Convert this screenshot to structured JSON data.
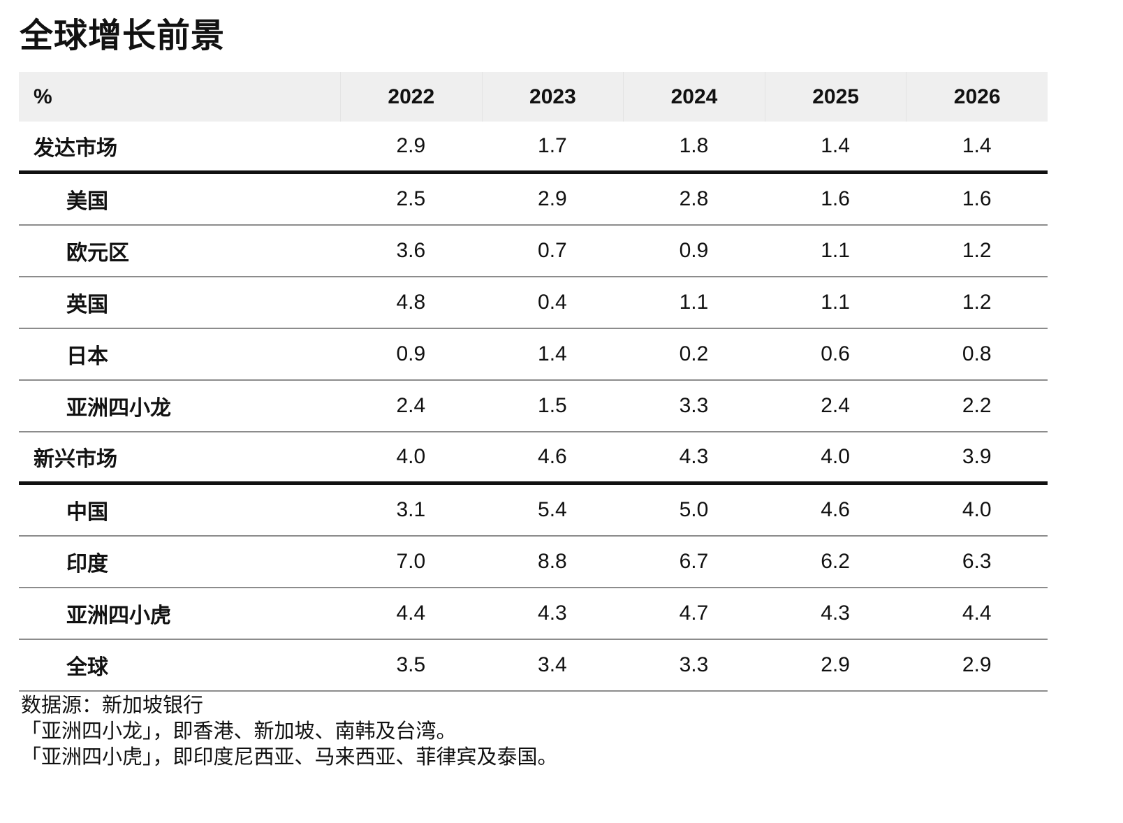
{
  "title": "全球增长前景",
  "chart_data": {
    "type": "table",
    "title": "全球增长前景",
    "unit_label": "%",
    "columns": [
      "2022",
      "2023",
      "2024",
      "2025",
      "2026"
    ],
    "rows": [
      {
        "label": "发达市场",
        "group": true,
        "values": [
          "2.9",
          "1.7",
          "1.8",
          "1.4",
          "1.4"
        ]
      },
      {
        "label": "美国",
        "group": false,
        "values": [
          "2.5",
          "2.9",
          "2.8",
          "1.6",
          "1.6"
        ]
      },
      {
        "label": "欧元区",
        "group": false,
        "values": [
          "3.6",
          "0.7",
          "0.9",
          "1.1",
          "1.2"
        ]
      },
      {
        "label": "英国",
        "group": false,
        "values": [
          "4.8",
          "0.4",
          "1.1",
          "1.1",
          "1.2"
        ]
      },
      {
        "label": "日本",
        "group": false,
        "values": [
          "0.9",
          "1.4",
          "0.2",
          "0.6",
          "0.8"
        ]
      },
      {
        "label": "亚洲四小龙",
        "group": false,
        "values": [
          "2.4",
          "1.5",
          "3.3",
          "2.4",
          "2.2"
        ]
      },
      {
        "label": "新兴市场",
        "group": true,
        "values": [
          "4.0",
          "4.6",
          "4.3",
          "4.0",
          "3.9"
        ]
      },
      {
        "label": "中国",
        "group": false,
        "values": [
          "3.1",
          "5.4",
          "5.0",
          "4.6",
          "4.0"
        ]
      },
      {
        "label": "印度",
        "group": false,
        "values": [
          "7.0",
          "8.8",
          "6.7",
          "6.2",
          "6.3"
        ]
      },
      {
        "label": "亚洲四小虎",
        "group": false,
        "values": [
          "4.4",
          "4.3",
          "4.7",
          "4.3",
          "4.4"
        ]
      },
      {
        "label": "全球",
        "group": false,
        "values": [
          "3.5",
          "3.4",
          "3.3",
          "2.9",
          "2.9"
        ]
      }
    ]
  },
  "notes": [
    "数据源：新加坡银行",
    "「亚洲四小龙」，即香港、新加坡、南韩及台湾。",
    "「亚洲四小虎」，即印度尼西亚、马来西亚、菲律宾及泰国。"
  ]
}
